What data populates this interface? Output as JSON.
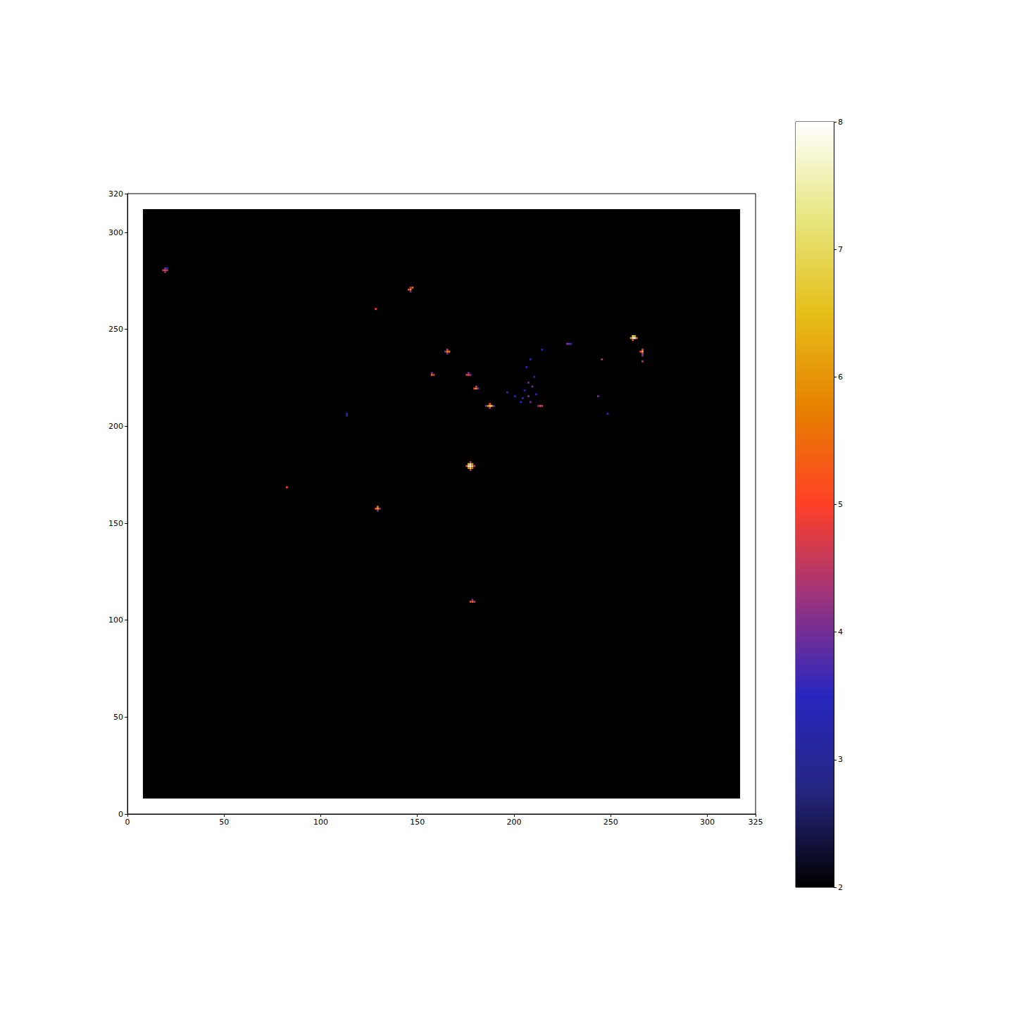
{
  "chart_data": {
    "type": "image",
    "xlim": [
      0,
      325
    ],
    "ylim": [
      0,
      320
    ],
    "xticks": [
      0,
      50,
      100,
      150,
      200,
      250,
      300
    ],
    "yticks": [
      0,
      50,
      100,
      150,
      200,
      250,
      300
    ],
    "grid": false,
    "footprint": {
      "xlim": [
        8,
        317
      ],
      "ylim": [
        8,
        312
      ],
      "value": 2
    },
    "cells": [
      [
        19,
        280,
        5
      ],
      [
        18,
        280,
        4.5
      ],
      [
        20,
        280,
        4.5
      ],
      [
        19,
        281,
        4
      ],
      [
        19,
        279,
        4
      ],
      [
        20,
        281,
        3.5
      ],
      [
        146,
        270,
        6
      ],
      [
        145,
        270,
        5
      ],
      [
        147,
        271,
        5.5
      ],
      [
        146,
        271,
        4.5
      ],
      [
        146,
        269,
        4
      ],
      [
        165,
        238,
        6
      ],
      [
        166,
        238,
        5.5
      ],
      [
        165,
        239,
        4.5
      ],
      [
        165,
        237,
        4
      ],
      [
        164,
        238,
        4
      ],
      [
        157,
        226,
        5.5
      ],
      [
        158,
        226,
        4.5
      ],
      [
        157,
        227,
        4
      ],
      [
        176,
        226,
        5
      ],
      [
        175,
        226,
        4.5
      ],
      [
        177,
        226,
        4
      ],
      [
        176,
        227,
        4
      ],
      [
        180,
        219,
        6
      ],
      [
        179,
        219,
        5
      ],
      [
        180,
        220,
        4.5
      ],
      [
        181,
        219,
        4
      ],
      [
        187,
        210,
        7
      ],
      [
        186,
        210,
        6
      ],
      [
        188,
        210,
        6.5
      ],
      [
        187,
        211,
        5
      ],
      [
        187,
        209,
        4.5
      ],
      [
        185,
        210,
        4
      ],
      [
        189,
        210,
        4
      ],
      [
        177,
        179,
        8
      ],
      [
        176,
        179,
        8
      ],
      [
        177,
        180,
        8
      ],
      [
        178,
        179,
        7
      ],
      [
        177,
        178,
        7
      ],
      [
        176,
        180,
        6.5
      ],
      [
        178,
        180,
        6
      ],
      [
        176,
        178,
        6
      ],
      [
        178,
        178,
        5.5
      ],
      [
        175,
        179,
        5
      ],
      [
        179,
        179,
        4.5
      ],
      [
        177,
        181,
        4.5
      ],
      [
        177,
        177,
        4.5
      ],
      [
        129,
        157,
        6.5
      ],
      [
        129,
        158,
        5.5
      ],
      [
        128,
        157,
        5
      ],
      [
        130,
        157,
        4.5
      ],
      [
        129,
        156,
        4
      ],
      [
        178,
        109,
        5.5
      ],
      [
        177,
        109,
        5
      ],
      [
        179,
        109,
        4.5
      ],
      [
        178,
        110,
        4
      ],
      [
        261,
        245,
        8
      ],
      [
        262,
        245,
        8
      ],
      [
        261,
        246,
        7
      ],
      [
        260,
        245,
        6
      ],
      [
        263,
        245,
        5.5
      ],
      [
        261,
        244,
        5
      ],
      [
        262,
        246,
        6.5
      ],
      [
        266,
        238,
        6.5
      ],
      [
        266,
        239,
        5
      ],
      [
        265,
        238,
        5
      ],
      [
        266,
        237,
        4.5
      ],
      [
        266,
        236,
        4
      ],
      [
        266,
        233,
        4.5
      ],
      [
        245,
        234,
        4.5
      ],
      [
        228,
        242,
        4
      ],
      [
        227,
        242,
        4
      ],
      [
        229,
        242,
        3.5
      ],
      [
        213,
        210,
        5
      ],
      [
        214,
        210,
        4.5
      ],
      [
        212,
        210,
        4
      ],
      [
        207,
        215,
        4
      ],
      [
        205,
        218,
        3.5
      ],
      [
        209,
        220,
        4
      ],
      [
        203,
        212,
        3.5
      ],
      [
        210,
        225,
        3.5
      ],
      [
        206,
        230,
        3.5
      ],
      [
        208,
        212,
        4
      ],
      [
        204,
        214,
        3.5
      ],
      [
        211,
        216,
        3.5
      ],
      [
        207,
        222,
        4
      ],
      [
        200,
        215,
        3.5
      ],
      [
        208,
        234,
        3.5
      ],
      [
        214,
        239,
        3.5
      ],
      [
        196,
        217,
        3.5
      ],
      [
        113,
        206,
        3.5
      ],
      [
        113,
        205,
        3
      ],
      [
        243,
        215,
        4
      ],
      [
        248,
        206,
        3.5
      ],
      [
        128,
        260,
        5
      ],
      [
        82,
        168,
        5
      ]
    ],
    "colorbar": {
      "range": [
        2,
        8
      ],
      "ticks": [
        2,
        3,
        4,
        5,
        6,
        7,
        8
      ],
      "colors": [
        "#000000",
        "#262680",
        "#2626bf",
        "#993380",
        "#ff4026",
        "#e68000",
        "#e6bf1a",
        "#e6e680",
        "#ffffff"
      ]
    }
  }
}
